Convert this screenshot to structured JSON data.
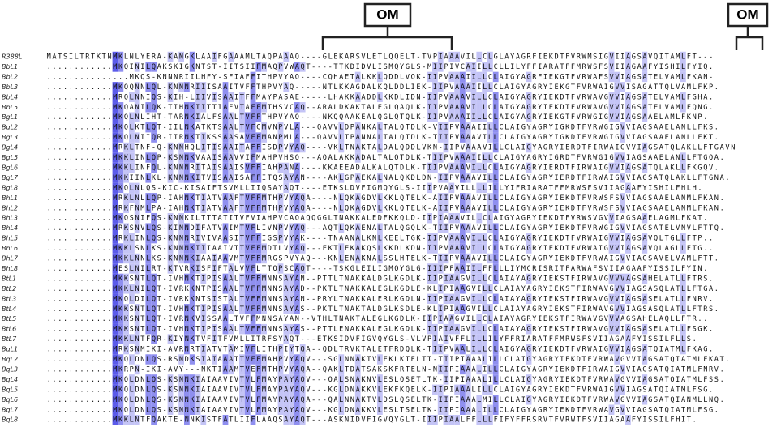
{
  "brackets": [
    {
      "label": "OM"
    },
    {
      "label": "OM"
    }
  ],
  "rows": [
    {
      "name": "R388L",
      "sequence": "MATSILTRTKTNMKLNLYERA-KANGKLAAIFGAAAMLTAQPAAAQ----GLEKARSVLETLQQELT-TVPIAAAVILLCLGLAYAGRFIEKDTFVRWMSIGVIIAGSAVQITAMLFT---"
    },
    {
      "name": "BbL1",
      "sequence": "............MKQINILQAKSKIGKNTST-IITSIIFMAQPVWAQT----TTKDIDVLISMQYGLS-MIIPIVCAIILLCLLILYFFIARATFFMRWSFSVIIAGAAFYISHILFYIQ."
    },
    {
      "name": "BbL2",
      "sequence": "...............MKQS-KNNNRIILHFY-SFIAFFITHPVYAQ----CQHAETALKKLQDDLVQK-IIPVAAAIILLCLAIGYAGRFIEKGTFVRWAFSVVIAGSATELVAMLFKAN-"
    },
    {
      "name": "BbL3",
      "sequence": "............MKQQNNLQL-KNNNRIIISAAITVFFTHPVYAQ-----NTLKKAGDALKQLDDLIEK-IIPVAAAIILLCLAIGYAGRYIEKGTFVRWAIGVVISAGATTQLVAMLFKP."
    },
    {
      "name": "BbL4",
      "sequence": "............MRQLNNIQS-KIH-LIIVISAAITFFMAYPASAE-----LHAKKAADDLKKDLIDN-IIPVAAAVILLCLAIGYAGRYIEKDTFVRWAVGVVIAGSATELVAMLFGHA."
    },
    {
      "name": "BbL5",
      "sequence": "............MKQANILQK-TIHNKIITTIAFVTAFFMTHSVCAQ--ARALDKAKTALEGLQAQLK-IIPVAAAVILLCLAIGYAGRYIEKDTFVRWAVGVVIAGSATELVAMLFQNG."
    },
    {
      "name": "BgL1",
      "sequence": "............MKQLNLIHT-TARNKIALFSAALTVFFTHPVYAQ----NKQQAAKEALQGLQTQLK-IIPVAAAIILLCLAIGYAGRYIEKGTFVRWGIGVVIAGSAAELAMLFKNP."
    },
    {
      "name": "BgL2",
      "sequence": "............MKQLKTLQT-IILNKATKTSAALTVFCMVNPVLA---QAVVLDPANKALTALQTDLK-VIIPVAAAIILLCLAIGYAGRYIGKDTFVRWGIGVVIAGSAAELANLLFKS."
    },
    {
      "name": "BgL3",
      "sequence": "............MKQLNIIQR-IIRNKTIKSSAASAVFFMANPMLA---QAVVLTPANNALTALQTDLK-TIIPVAAAVILLCLAIGYAGRYIGKDTFVRWGIGVVIAGSAAELANLLFKT."
    },
    {
      "name": "BgL4",
      "sequence": "............MRKLTNF-Q-KNNHQLITISAAITAFFISDPVYAQ----VKLTNAKTALDALQDDLVKN-IIPVAAAVILLCLAIGYAGRYIERDTFIRWAIGVVIAGSATQLAKLLFTGAVN"
    },
    {
      "name": "BgL5",
      "sequence": "............MKKLINLQP-KSNNKVAAISAAVVIFMAHPVHSQ---AQALAKKADALTALQTDLK-TIIPVAAAIILLCLAIGYAGRYIGRDTFVRWGIGVVIAGSAAELANLLFTGQA."
    },
    {
      "name": "BgL6",
      "sequence": "............MKKLINFQL-KNNNRITAISAAISVFFIAHPANA----KKAEEADALKALQTDLK-TIIPVAAAVILLCLAIGYAGRYIERDTFIRWAIGVVIAGSATQLAKLLFKGQV."
    },
    {
      "name": "BgL7",
      "sequence": "............MKKIINLKL-KNNNKITVISAAISAFFITQSAYAN----AKLGPAEKALNALQKDLDN-IIPVAAAVILLCLAIGYAGRYIERDTFIRWAIGVVIAGSATQLAKLLFTGNA."
    },
    {
      "name": "BgL8",
      "sequence": "............MKQLNLQS-KIC-KISAIFTSVMLLIIQSAYAQT----ETKSLDVFIGMQYGLS-IIIPVAAVILLLLILLYIFRIARATFFMRWSFSVIIAGAAFYISHILFHLH."
    },
    {
      "name": "BhL1",
      "sequence": "............MRKLNLLQP-IAHNKTIATVAAFTVFFMTHPVYAQA----NLQKAGDVLKKLQTELK-AIIPVAAAVILLCLAIGYAGRYIEKDTFVRWSFSVVIAGSAAELANMLFKAN."
    },
    {
      "name": "BhL2",
      "sequence": "............MRKFNMLPA-IAHNKTIATVAAFTVFFMTHPVYAQA----NLQKAGDVLKKLQTELK-AIIPVAAAVILLCLAIGYAGRYIEKDTFVRWSFSVVIAGSAAELANMLFKAN."
    },
    {
      "name": "BhL3",
      "sequence": "............MKQSNIFQS-KNNKILTTTATITVFVIAHPVCAQAQQGGLTNAKKALEDFKKQLD-IIPIAAAVILLCLAIGYAGRYIEKDTFVRWSVGVVIAGSAAELAGMLFKAT."
    },
    {
      "name": "BhL4",
      "sequence": "............MRKSNVLQS-KINNDIFATVAIMTVFLIVNPVYAQ---AQTLQKAENALTALQGQLK-TIIPVAAAVILLCLAIGYAGRYIEKDTFVRWGIGVVIAGSATELVNVLFTTQ."
    },
    {
      "name": "BhL5",
      "sequence": "............MRKLINLQS-KNNNRIVIVAASITVFFIGSPVYAK----TNAANALKNLKEELTGK-IIPVAAAVILLCLAIGYAGRYIEKDTFVRWAIGVVIAGSAVQLTGLLFTP.."
    },
    {
      "name": "BhL6",
      "sequence": "............MKKLSNLKS-KNNNKIIIAAIVTTVFFMDTLVYAQ---EKTLEKAKQSLKKDLKDN-IIPVAAAVILLCLAIGYAGRYIEKDTFVRWAIGVVIAGSAVQLAGLLFTG.."
    },
    {
      "name": "BhL7",
      "sequence": "............MKKLNNLKS-KNNNKIAAIAAVMTVFFMRGSPVYAQ---KNLENAKNALSSLHTELK-TIIPVAAAVILLCLAIGYAGRYIEKDTFVRWAIGVVIAGSAVELVAMLFTT."
    },
    {
      "name": "BhL8",
      "sequence": "............MESLNILRT-KTVRKISFIFTALVVFLTTQPSCAQT----TSKGLEILIGMQYGLG-IIIPFAAIILFFLLLIYMCRISRITFARWAFSVIIAGAAFYISSILFYIN."
    },
    {
      "name": "BtL1",
      "sequence": "............MKKSNTLQT-IVHNKTIPISAALTVFFMNNSAYAN--PTTLTNAKKALDGLKGDLK-IIPIAAGVILLCLAIAYAGRYIEKSTFIRWAVGVVVAGSAHELATLLFTRS."
    },
    {
      "name": "BtL2",
      "sequence": "............MKKLNILQT-IVRKKNTPISAALTVFFMNNSAYAD--PKTLTNAKKALEGLKGDLE-KLIPIAAGVILLCLAIAYAGRYIEKSTFIRWAVGVVIAGSASQLATLLFTGA."
    },
    {
      "name": "BtL3",
      "sequence": "............MKQLDILQT-IVRKKNTSISTALTVFFMNNSAYAN--PRYLTNAKKALERLKGDLN-IIPIAAGVILLCLAIAYAGRYIEKSTFIRWAVGVVIAGSASELATLLFNRV."
    },
    {
      "name": "BtL4",
      "sequence": "............MKKSNTLQT-IVHNKTIPISAALTVFFMNNSAYAS--PKTLTNAKTALDGLKSDLE-KLIPIAAGVILLCLAIAYAGRYIEKSTFIRWAVGVVIAGSASQLATLLFTRS."
    },
    {
      "name": "BtL5",
      "sequence": "............MKKSNTLQT-IVRNKVISSAALTVFFMNNSAYAN--VTHLTNAKTALEGLKGDLK-IIPIAAGVILLCLAIAYAGRYIEKSTFIRWAVGVVVAGSAHELAQLLFTR.."
    },
    {
      "name": "BtL6",
      "sequence": "............MKKSNTLQT-IVHNKTIPISAALTVFFMNNSAYAS--PTTLENAKKALEGLKGDLK-IIPIAAGVILLCLAIAYAGRYIEKSTFIRWAVGVVIAGSASELATLLFSGK."
    },
    {
      "name": "BtL7",
      "sequence": "............MKKLNTFQR-KIYNKTVFITFVMLLITRFSYAQT---ETKSIDVFIGVQYGLS-VLVPIAIVFFLILLILYFFRIARATFFMRWSFSVIIAGAAFYISSILFLLS."
    },
    {
      "name": "BqL1",
      "sequence": "............MRKSNMIKI-AVRNRTIATVTAMIVFLITHPIYTQA--QDLTRVKTALETFRDQLK-TIIPVAALILLCLAIGYAGRYIEKDTFVRWAIGVVIAGSATQIATMLFKAG."
    },
    {
      "name": "BqL2",
      "sequence": "............MKQLDNLQS-RSNDKSIAIAAATTVFFMAHPVYAQV---SGLNNAKTVLEKLKTELTT-TIIPIAAALILLCLAIGYAGRYIEKDTFVRWAVGVVIAGSATQIATMLFKAT."
    },
    {
      "name": "BqL3",
      "sequence": "............MKRPN-IKI-AVY---NKTIAAMTVEFMTHPVYAQA--QAKLTDATSAKSKFRTELN-NIIPIAAALILLCLAIGYAGRYIEKDTFIRWAIGVVIAGSATQIATMLFNRV."
    },
    {
      "name": "BqL4",
      "sequence": "............MKQLDNLQS-KSNNKIAIAAVIVTVLFMAYPAYAQV---QALSNAKNVLESLQSETLTK-IIPIAAALILLCLAIGYAGRYIEKDTFVRWAVGVVIAGSATQIATMLFSS."
    },
    {
      "name": "BqL5",
      "sequence": "............MKQLDNLQS-KSNNKIAIAAVIVTVLFMAYPAYAQV---KGLDNAKKVLEKFKQELK-IIPIAAALILLCLAIGYAGRYIEKDTFVRWAIGVVIAGSATQIATMLFSG."
    },
    {
      "name": "BqL6",
      "sequence": "............MKQLDNLQS-KSNNKIAIAAVIVTVLFMAYPAYAQA---QALNNAKTVLDSLQSELTK-IIPIAAALMILLCLAIGYAGRYIEKDTFVRWAVGVVIAGSATQIANMLLNQ."
    },
    {
      "name": "BqL7",
      "sequence": "............MKQLDNLQS-KSNNKIAIAAVIVTVLFMAYPAYAQV---KGLDNAKKVLESLTSELTK-IIPIAAALILLCLAIGYAGRYIEKDTFVRWAVGVVIAGSATQIATMLFSG."
    },
    {
      "name": "BqL8",
      "sequence": "............MKKLNTFQAKTE-NNKISTFATLIIFLAAQSAYAQT---ASKNIDVFIGVQYGLT-IIIPIAALFFLLLFIFYFFRSRVTFVRWTFSVIIAGAAFYISSILFHIT."
    }
  ]
}
